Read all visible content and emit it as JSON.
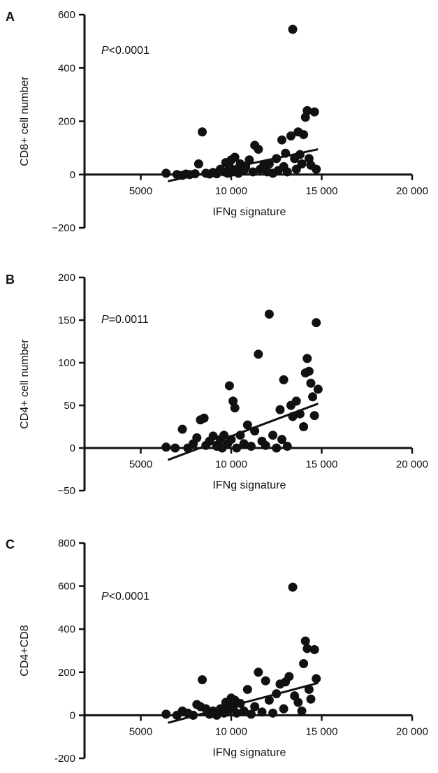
{
  "chart_data": [
    {
      "type": "scatter",
      "panel": "A",
      "xlabel": "IFNg signature",
      "ylabel": "CD8+ cell number",
      "pvalue": {
        "symbol": "P",
        "text": "<0.0001"
      },
      "xlim": [
        0,
        20000
      ],
      "ylim": [
        -200,
        600
      ],
      "xticks": [
        5000,
        10000,
        15000,
        20000
      ],
      "xtick_labels": [
        "5000",
        "10 000",
        "15 000",
        "20 000"
      ],
      "yticks": [
        -200,
        0,
        200,
        400,
        600
      ],
      "ytick_labels": [
        "−200",
        "0",
        "200",
        "400",
        "600"
      ],
      "trendline": {
        "x": [
          6500,
          14800
        ],
        "y": [
          -25,
          95
        ]
      },
      "points": [
        {
          "x": 6400,
          "y": 5
        },
        {
          "x": 7000,
          "y": 0
        },
        {
          "x": 7300,
          "y": -3
        },
        {
          "x": 7500,
          "y": 2
        },
        {
          "x": 7700,
          "y": 0
        },
        {
          "x": 8000,
          "y": 3
        },
        {
          "x": 8200,
          "y": 40
        },
        {
          "x": 8400,
          "y": 160
        },
        {
          "x": 8600,
          "y": 5
        },
        {
          "x": 8800,
          "y": 2
        },
        {
          "x": 9000,
          "y": 8
        },
        {
          "x": 9200,
          "y": 3
        },
        {
          "x": 9400,
          "y": 20
        },
        {
          "x": 9600,
          "y": 10
        },
        {
          "x": 9700,
          "y": 45
        },
        {
          "x": 9800,
          "y": 5
        },
        {
          "x": 9900,
          "y": 30
        },
        {
          "x": 10000,
          "y": 55
        },
        {
          "x": 10100,
          "y": 10
        },
        {
          "x": 10200,
          "y": 65
        },
        {
          "x": 10300,
          "y": 20
        },
        {
          "x": 10400,
          "y": 5
        },
        {
          "x": 10500,
          "y": 40
        },
        {
          "x": 10700,
          "y": 15
        },
        {
          "x": 10800,
          "y": 30
        },
        {
          "x": 11000,
          "y": 55
        },
        {
          "x": 11200,
          "y": 10
        },
        {
          "x": 11300,
          "y": 110
        },
        {
          "x": 11500,
          "y": 95
        },
        {
          "x": 11600,
          "y": 20
        },
        {
          "x": 11800,
          "y": 35
        },
        {
          "x": 12000,
          "y": 10
        },
        {
          "x": 12100,
          "y": 40
        },
        {
          "x": 12300,
          "y": 5
        },
        {
          "x": 12500,
          "y": 60
        },
        {
          "x": 12600,
          "y": 15
        },
        {
          "x": 12800,
          "y": 130
        },
        {
          "x": 12900,
          "y": 30
        },
        {
          "x": 13000,
          "y": 80
        },
        {
          "x": 13100,
          "y": 10
        },
        {
          "x": 13300,
          "y": 145
        },
        {
          "x": 13400,
          "y": 545
        },
        {
          "x": 13500,
          "y": 60
        },
        {
          "x": 13600,
          "y": 20
        },
        {
          "x": 13700,
          "y": 160
        },
        {
          "x": 13800,
          "y": 75
        },
        {
          "x": 13900,
          "y": 40
        },
        {
          "x": 14000,
          "y": 150
        },
        {
          "x": 14100,
          "y": 215
        },
        {
          "x": 14200,
          "y": 240
        },
        {
          "x": 14300,
          "y": 60
        },
        {
          "x": 14400,
          "y": 35
        },
        {
          "x": 14600,
          "y": 235
        },
        {
          "x": 14700,
          "y": 20
        }
      ]
    },
    {
      "type": "scatter",
      "panel": "B",
      "xlabel": "IFNg signature",
      "ylabel": "CD4+ cell number",
      "pvalue": {
        "symbol": "P",
        "text": "=0.0011"
      },
      "xlim": [
        0,
        20000
      ],
      "ylim": [
        -50,
        200
      ],
      "xticks": [
        5000,
        10000,
        15000,
        20000
      ],
      "xtick_labels": [
        "5000",
        "10 000",
        "15 000",
        "20 000"
      ],
      "yticks": [
        -50,
        0,
        50,
        100,
        150,
        200
      ],
      "ytick_labels": [
        "−50",
        "0",
        "50",
        "100",
        "150",
        "200"
      ],
      "trendline": {
        "x": [
          6500,
          14800
        ],
        "y": [
          -14,
          52
        ]
      },
      "points": [
        {
          "x": 6400,
          "y": 1
        },
        {
          "x": 6900,
          "y": 0
        },
        {
          "x": 7300,
          "y": 22
        },
        {
          "x": 7600,
          "y": 0
        },
        {
          "x": 7900,
          "y": 5
        },
        {
          "x": 8100,
          "y": 12
        },
        {
          "x": 8300,
          "y": 33
        },
        {
          "x": 8500,
          "y": 35
        },
        {
          "x": 8600,
          "y": 3
        },
        {
          "x": 8800,
          "y": 8
        },
        {
          "x": 9000,
          "y": 14
        },
        {
          "x": 9200,
          "y": 2
        },
        {
          "x": 9400,
          "y": 10
        },
        {
          "x": 9500,
          "y": 0
        },
        {
          "x": 9600,
          "y": 15
        },
        {
          "x": 9800,
          "y": 5
        },
        {
          "x": 9900,
          "y": 73
        },
        {
          "x": 10000,
          "y": 10
        },
        {
          "x": 10100,
          "y": 55
        },
        {
          "x": 10200,
          "y": 47
        },
        {
          "x": 10300,
          "y": 0
        },
        {
          "x": 10500,
          "y": 15
        },
        {
          "x": 10700,
          "y": 5
        },
        {
          "x": 10900,
          "y": 27
        },
        {
          "x": 11100,
          "y": 2
        },
        {
          "x": 11300,
          "y": 20
        },
        {
          "x": 11500,
          "y": 110
        },
        {
          "x": 11700,
          "y": 8
        },
        {
          "x": 11900,
          "y": 3
        },
        {
          "x": 12100,
          "y": 157
        },
        {
          "x": 12300,
          "y": 15
        },
        {
          "x": 12500,
          "y": 0
        },
        {
          "x": 12700,
          "y": 45
        },
        {
          "x": 12800,
          "y": 10
        },
        {
          "x": 12900,
          "y": 80
        },
        {
          "x": 13100,
          "y": 2
        },
        {
          "x": 13300,
          "y": 50
        },
        {
          "x": 13400,
          "y": 37
        },
        {
          "x": 13600,
          "y": 55
        },
        {
          "x": 13800,
          "y": 40
        },
        {
          "x": 14000,
          "y": 25
        },
        {
          "x": 14100,
          "y": 88
        },
        {
          "x": 14200,
          "y": 105
        },
        {
          "x": 14300,
          "y": 90
        },
        {
          "x": 14400,
          "y": 76
        },
        {
          "x": 14500,
          "y": 60
        },
        {
          "x": 14600,
          "y": 38
        },
        {
          "x": 14700,
          "y": 147
        },
        {
          "x": 14800,
          "y": 69
        }
      ]
    },
    {
      "type": "scatter",
      "panel": "C",
      "xlabel": "IFNg signature",
      "ylabel": "CD4+CD8",
      "pvalue": {
        "symbol": "P",
        "text": "<0.0001"
      },
      "xlim": [
        0,
        20000
      ],
      "ylim": [
        -200,
        800
      ],
      "xticks": [
        5000,
        10000,
        15000,
        20000
      ],
      "xtick_labels": [
        "5000",
        "10 000",
        "15 000",
        "20 000"
      ],
      "yticks": [
        -200,
        0,
        200,
        400,
        600,
        800
      ],
      "ytick_labels": [
        "-200",
        "0",
        "200",
        "400",
        "600",
        "800"
      ],
      "trendline": {
        "x": [
          6500,
          14800
        ],
        "y": [
          -35,
          150
        ]
      },
      "points": [
        {
          "x": 6400,
          "y": 5
        },
        {
          "x": 7000,
          "y": 0
        },
        {
          "x": 7300,
          "y": 20
        },
        {
          "x": 7600,
          "y": 10
        },
        {
          "x": 7900,
          "y": 0
        },
        {
          "x": 8100,
          "y": 50
        },
        {
          "x": 8300,
          "y": 40
        },
        {
          "x": 8400,
          "y": 165
        },
        {
          "x": 8600,
          "y": 30
        },
        {
          "x": 8800,
          "y": 5
        },
        {
          "x": 9000,
          "y": 20
        },
        {
          "x": 9200,
          "y": 0
        },
        {
          "x": 9400,
          "y": 30
        },
        {
          "x": 9600,
          "y": 10
        },
        {
          "x": 9700,
          "y": 60
        },
        {
          "x": 9800,
          "y": 15
        },
        {
          "x": 9900,
          "y": 45
        },
        {
          "x": 10000,
          "y": 80
        },
        {
          "x": 10100,
          "y": 35
        },
        {
          "x": 10200,
          "y": 70
        },
        {
          "x": 10300,
          "y": 10
        },
        {
          "x": 10500,
          "y": 55
        },
        {
          "x": 10700,
          "y": 20
        },
        {
          "x": 10900,
          "y": 120
        },
        {
          "x": 11100,
          "y": 5
        },
        {
          "x": 11300,
          "y": 40
        },
        {
          "x": 11500,
          "y": 200
        },
        {
          "x": 11700,
          "y": 15
        },
        {
          "x": 11900,
          "y": 160
        },
        {
          "x": 12100,
          "y": 70
        },
        {
          "x": 12300,
          "y": 10
        },
        {
          "x": 12500,
          "y": 100
        },
        {
          "x": 12700,
          "y": 145
        },
        {
          "x": 12900,
          "y": 30
        },
        {
          "x": 13000,
          "y": 155
        },
        {
          "x": 13200,
          "y": 180
        },
        {
          "x": 13400,
          "y": 595
        },
        {
          "x": 13500,
          "y": 90
        },
        {
          "x": 13700,
          "y": 60
        },
        {
          "x": 13900,
          "y": 20
        },
        {
          "x": 14000,
          "y": 240
        },
        {
          "x": 14100,
          "y": 345
        },
        {
          "x": 14200,
          "y": 310
        },
        {
          "x": 14300,
          "y": 120
        },
        {
          "x": 14400,
          "y": 75
        },
        {
          "x": 14600,
          "y": 305
        },
        {
          "x": 14700,
          "y": 170
        }
      ]
    }
  ]
}
